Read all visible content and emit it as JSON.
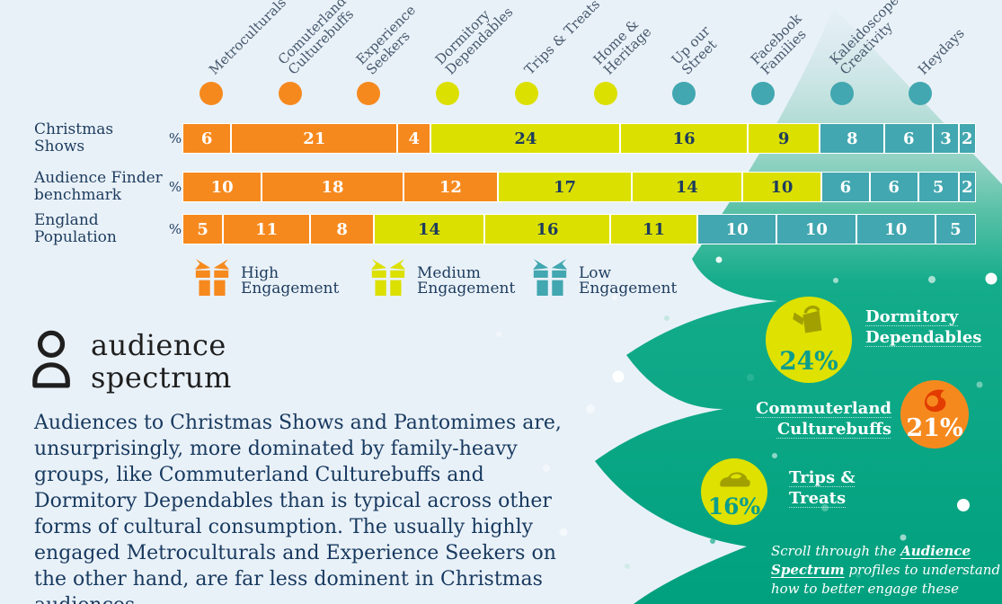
{
  "colors": {
    "high": "#f6891e",
    "medium": "#dce000",
    "low": "#42a7b0",
    "navy": "#1d3c5e",
    "bg": "#e9f1f8",
    "tree_green": "#00a181",
    "badge_yellow": "#dfe100",
    "badge_orange": "#f6891e",
    "pct_teal": "#0a9d8d",
    "icon_olive": "#a2a000",
    "icon_red": "#e23c00"
  },
  "chart_data": {
    "type": "bar",
    "orientation": "horizontal-stacked",
    "unit": "%",
    "categories": [
      "Metroculturals",
      "Comuterland Culturebuffs",
      "Experience Seekers",
      "Dormitory Dependables",
      "Trips & Treats",
      "Home & Heritage",
      "Up our Street",
      "Facebook Families",
      "Kaleidoscope Creativity",
      "Heydays"
    ],
    "header_lines": [
      [
        "Metroculturals"
      ],
      [
        "Comuterland",
        "Culturebuffs"
      ],
      [
        "Experience",
        "Seekers"
      ],
      [
        "Dormitory",
        "Dependables"
      ],
      [
        "Trips & Treats"
      ],
      [
        "Home &",
        "Heritage"
      ],
      [
        "Up our",
        "Street"
      ],
      [
        "Facebook",
        "Families"
      ],
      [
        "Kaleidoscope",
        "Creativity"
      ],
      [
        "Heydays"
      ]
    ],
    "column_engagement": [
      "high",
      "high",
      "high",
      "medium",
      "medium",
      "medium",
      "low",
      "low",
      "low",
      "low"
    ],
    "series": [
      {
        "name": "Christmas Shows",
        "display": "Christmas Shows",
        "values": [
          6,
          21,
          4,
          24,
          16,
          9,
          8,
          6,
          3,
          2
        ]
      },
      {
        "name": "Audience Finder benchmark",
        "display": "Audience Finder\nbenchmark",
        "values": [
          10,
          18,
          12,
          17,
          14,
          10,
          6,
          6,
          5,
          2
        ]
      },
      {
        "name": "England Population",
        "display": "England\nPopulation",
        "values": [
          5,
          11,
          8,
          14,
          16,
          11,
          10,
          10,
          10,
          5
        ]
      }
    ],
    "legend": [
      {
        "label": "High Engagement",
        "level": "high"
      },
      {
        "label": "Medium Engagement",
        "level": "medium"
      },
      {
        "label": "Low Engagement",
        "level": "low"
      }
    ],
    "xlim": [
      0,
      100
    ],
    "grid": false
  },
  "legend_items": [
    {
      "label": "High Engagement",
      "lines": [
        "High",
        "Engagement"
      ],
      "level": "high"
    },
    {
      "label": "Medium Engagement",
      "lines": [
        "Medium",
        "Engagement"
      ],
      "level": "medium"
    },
    {
      "label": "Low Engagement",
      "lines": [
        "Low",
        "Engagement"
      ],
      "level": "low"
    }
  ],
  "logo": {
    "line1": "audience",
    "line2": "spectrum"
  },
  "paragraph": {
    "text": "Audiences to Christmas Shows and Pantomimes are, unsurprisingly, more dominated by family-heavy groups, like Commuterland Culturebuffs and Dormitory Dependables than is typical across other forms of cultural consumption. The usually highly engaged Metroculturals and Experience Seekers on the other hand, are far less dominent in Christmas audiences."
  },
  "badges": [
    {
      "group": "Dormitory Dependables",
      "label_lines": [
        "Dormitory",
        "Dependables"
      ],
      "value": "24%",
      "circle": "badge_yellow",
      "pct_color": "pct_teal",
      "icon": "watering-can",
      "icon_color": "icon_olive"
    },
    {
      "group": "Commuterland Culturebuffs",
      "label_lines": [
        "Commuterland",
        "Culturebuffs"
      ],
      "value": "21%",
      "circle": "badge_orange",
      "pct_color": "white",
      "icon": "horn",
      "icon_color": "icon_red"
    },
    {
      "group": "Trips & Treats",
      "label_lines": [
        "Trips &",
        "Treats"
      ],
      "value": "16%",
      "circle": "badge_yellow",
      "pct_color": "pct_teal",
      "icon": "car",
      "icon_color": "icon_olive"
    }
  ],
  "footer": {
    "prefix": "Scroll through the ",
    "link": "Audience Spectrum",
    "suffix": " profiles to understand how to better engage these groups."
  }
}
